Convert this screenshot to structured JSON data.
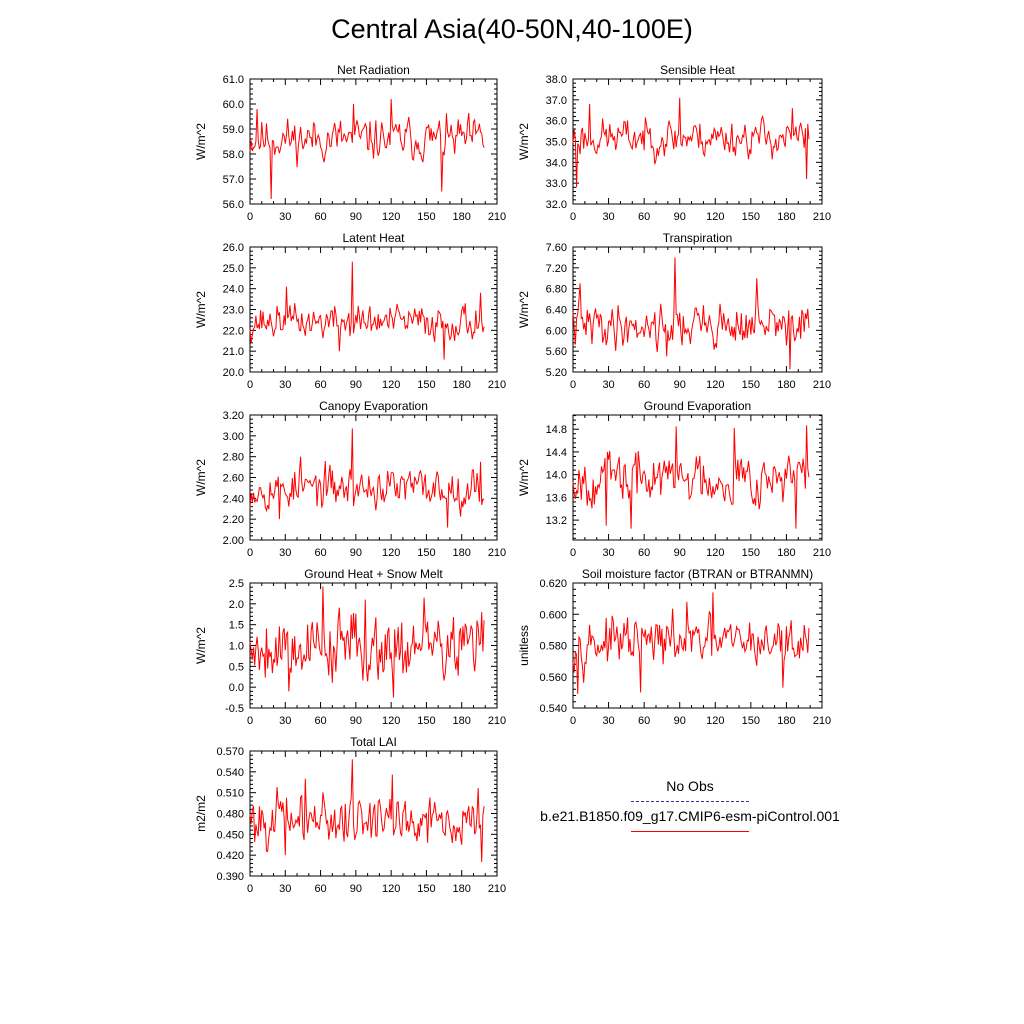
{
  "title": "Central Asia(40-50N,40-100E)",
  "chart_data": [
    {
      "type": "line",
      "title": "Net Radiation",
      "ylabel": "W/m^2",
      "xlim": [
        0,
        210
      ],
      "xticks": [
        0,
        30,
        60,
        90,
        120,
        150,
        180,
        210
      ],
      "ylim": [
        56.0,
        61.0
      ],
      "yticks": [
        "56.0",
        "57.0",
        "58.0",
        "59.0",
        "60.0",
        "61.0"
      ],
      "series": [
        {
          "name": "b.e21.B1850.f09_g17.CMIP6-esm-piControl.001",
          "color": "#ff0000",
          "n": 200,
          "mean": 58.6,
          "std": 0.55,
          "seed": 11,
          "peaks": [
            [
              18,
              56.2
            ],
            [
              88,
              60.0
            ],
            [
              120,
              60.2
            ],
            [
              163,
              56.5
            ],
            [
              6,
              59.8
            ]
          ]
        }
      ]
    },
    {
      "type": "line",
      "title": "Sensible Heat",
      "ylabel": "W/m^2",
      "xlim": [
        0,
        210
      ],
      "xticks": [
        0,
        30,
        60,
        90,
        120,
        150,
        180,
        210
      ],
      "ylim": [
        32.0,
        38.0
      ],
      "yticks": [
        "32.0",
        "33.0",
        "34.0",
        "35.0",
        "36.0",
        "37.0",
        "38.0"
      ],
      "series": [
        {
          "name": "b.e21.B1850.f09_g17.CMIP6-esm-piControl.001",
          "color": "#ff0000",
          "n": 200,
          "mean": 35.2,
          "std": 0.6,
          "seed": 23,
          "peaks": [
            [
              3,
              32.8
            ],
            [
              90,
              37.1
            ],
            [
              14,
              36.8
            ],
            [
              197,
              33.2
            ],
            [
              185,
              36.6
            ]
          ]
        }
      ]
    },
    {
      "type": "line",
      "title": "Latent Heat",
      "ylabel": "W/m^2",
      "xlim": [
        0,
        210
      ],
      "xticks": [
        0,
        30,
        60,
        90,
        120,
        150,
        180,
        210
      ],
      "ylim": [
        20.0,
        26.0
      ],
      "yticks": [
        "20.0",
        "21.0",
        "22.0",
        "23.0",
        "24.0",
        "25.0",
        "26.0"
      ],
      "series": [
        {
          "name": "b.e21.B1850.f09_g17.CMIP6-esm-piControl.001",
          "color": "#ff0000",
          "n": 200,
          "mean": 22.4,
          "std": 0.55,
          "seed": 37,
          "peaks": [
            [
              87,
              25.3
            ],
            [
              31,
              24.1
            ],
            [
              165,
              20.6
            ],
            [
              196,
              23.8
            ],
            [
              76,
              21.0
            ]
          ]
        }
      ]
    },
    {
      "type": "line",
      "title": "Transpiration",
      "ylabel": "W/m^2",
      "xlim": [
        0,
        210
      ],
      "xticks": [
        0,
        30,
        60,
        90,
        120,
        150,
        180,
        210
      ],
      "ylim": [
        5.2,
        7.6
      ],
      "yticks": [
        "5.20",
        "5.60",
        "6.00",
        "6.40",
        "6.80",
        "7.20",
        "7.60"
      ],
      "series": [
        {
          "name": "b.e21.B1850.f09_g17.CMIP6-esm-piControl.001",
          "color": "#ff0000",
          "n": 200,
          "mean": 6.1,
          "std": 0.28,
          "seed": 41,
          "peaks": [
            [
              86,
              7.4
            ],
            [
              6,
              6.9
            ],
            [
              183,
              5.25
            ],
            [
              155,
              7.0
            ],
            [
              79,
              5.5
            ]
          ]
        }
      ]
    },
    {
      "type": "line",
      "title": "Canopy Evaporation",
      "ylabel": "W/m^2",
      "xlim": [
        0,
        210
      ],
      "xticks": [
        0,
        30,
        60,
        90,
        120,
        150,
        180,
        210
      ],
      "ylim": [
        2.0,
        3.2
      ],
      "yticks": [
        "2.00",
        "2.20",
        "2.40",
        "2.60",
        "2.80",
        "3.00",
        "3.20"
      ],
      "series": [
        {
          "name": "b.e21.B1850.f09_g17.CMIP6-esm-piControl.001",
          "color": "#ff0000",
          "n": 200,
          "mean": 2.5,
          "std": 0.13,
          "seed": 53,
          "peaks": [
            [
              87,
              3.07
            ],
            [
              168,
              2.12
            ],
            [
              43,
              2.8
            ],
            [
              196,
              2.75
            ],
            [
              25,
              2.2
            ]
          ]
        }
      ]
    },
    {
      "type": "line",
      "title": "Ground Evaporation",
      "ylabel": "W/m^2",
      "xlim": [
        0,
        210
      ],
      "xticks": [
        0,
        30,
        60,
        90,
        120,
        150,
        180,
        210
      ],
      "ylim": [
        12.85,
        15.05
      ],
      "yticks": [
        "13.2",
        "13.6",
        "14.0",
        "14.4",
        "14.8"
      ],
      "series": [
        {
          "name": "b.e21.B1850.f09_g17.CMIP6-esm-piControl.001",
          "color": "#ff0000",
          "n": 200,
          "mean": 13.95,
          "std": 0.3,
          "seed": 67,
          "peaks": [
            [
              197,
              14.87
            ],
            [
              87,
              14.85
            ],
            [
              49,
              13.05
            ],
            [
              188,
              13.05
            ],
            [
              136,
              14.82
            ],
            [
              28,
              13.1
            ]
          ]
        }
      ]
    },
    {
      "type": "line",
      "title": "Ground Heat + Snow Melt",
      "ylabel": "W/m^2",
      "xlim": [
        0,
        210
      ],
      "xticks": [
        0,
        30,
        60,
        90,
        120,
        150,
        180,
        210
      ],
      "ylim": [
        -0.5,
        2.5
      ],
      "yticks": [
        "-0.5",
        "0.0",
        "0.5",
        "1.0",
        "1.5",
        "2.0",
        "2.5"
      ],
      "series": [
        {
          "name": "b.e21.B1850.f09_g17.CMIP6-esm-piControl.001",
          "color": "#ff0000",
          "n": 200,
          "mean": 1.0,
          "std": 0.55,
          "seed": 79,
          "peaks": [
            [
              62,
              2.42
            ],
            [
              122,
              -0.25
            ],
            [
              33,
              -0.1
            ],
            [
              148,
              2.15
            ],
            [
              98,
              2.1
            ]
          ]
        }
      ]
    },
    {
      "type": "line",
      "title": "Soil moisture factor (BTRAN or BTRANMN)",
      "ylabel": "unitless",
      "xlim": [
        0,
        210
      ],
      "xticks": [
        0,
        30,
        60,
        90,
        120,
        150,
        180,
        210
      ],
      "ylim": [
        0.54,
        0.62
      ],
      "yticks": [
        "0.540",
        "0.560",
        "0.580",
        "0.600",
        "0.620"
      ],
      "series": [
        {
          "name": "b.e21.B1850.f09_g17.CMIP6-esm-piControl.001",
          "color": "#ff0000",
          "n": 200,
          "mean": 0.582,
          "std": 0.01,
          "seed": 97,
          "peaks": [
            [
              118,
              0.614
            ],
            [
              4,
              0.549
            ],
            [
              57,
              0.55
            ],
            [
              177,
              0.553
            ],
            [
              96,
              0.608
            ]
          ]
        }
      ]
    },
    {
      "type": "line",
      "title": "Total LAI",
      "ylabel": "m2/m2",
      "xlim": [
        0,
        210
      ],
      "xticks": [
        0,
        30,
        60,
        90,
        120,
        150,
        180,
        210
      ],
      "ylim": [
        0.39,
        0.57
      ],
      "yticks": [
        "0.390",
        "0.420",
        "0.450",
        "0.480",
        "0.510",
        "0.540",
        "0.570"
      ],
      "series": [
        {
          "name": "b.e21.B1850.f09_g17.CMIP6-esm-piControl.001",
          "color": "#ff0000",
          "n": 200,
          "mean": 0.472,
          "std": 0.025,
          "seed": 101,
          "peaks": [
            [
              87,
              0.558
            ],
            [
              197,
              0.41
            ],
            [
              30,
              0.42
            ],
            [
              121,
              0.536
            ],
            [
              47,
              0.53
            ]
          ]
        }
      ]
    }
  ],
  "legend": {
    "entries": [
      {
        "label": "No Obs",
        "color": "#333399",
        "dash": "dash"
      },
      {
        "label": "b.e21.B1850.f09_g17.CMIP6-esm-piControl.001",
        "color": "#ff0000",
        "dash": "solid"
      }
    ]
  }
}
